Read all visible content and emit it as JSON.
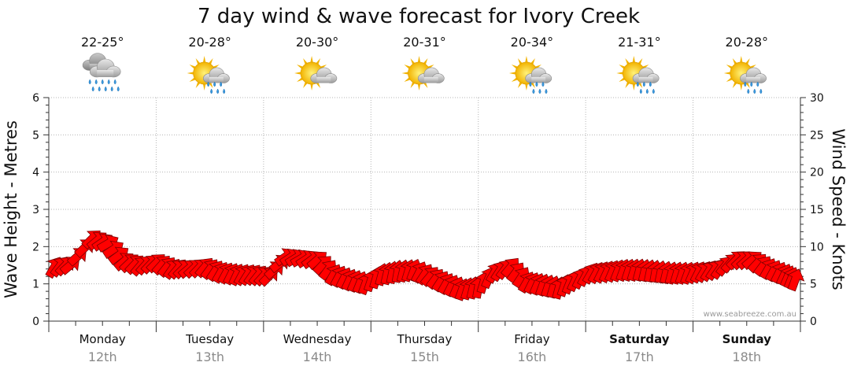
{
  "chart_data": {
    "type": "line",
    "title": "7 day wind & wave forecast for Ivory Creek",
    "ylabel": "Wave Height - Metres",
    "y2label": "Wind Speed - Knots",
    "ylim": [
      0,
      6
    ],
    "y2lim": [
      0,
      30
    ],
    "yticks": [
      "0",
      "1",
      "2",
      "3",
      "4",
      "5",
      "6"
    ],
    "y2ticks": [
      "0",
      "5",
      "10",
      "15",
      "20",
      "25",
      "30"
    ],
    "grid": true,
    "days": [
      {
        "name": "Monday",
        "date": "12th",
        "temp": "22-25°",
        "icon": "rain-cloud-icon",
        "bold": false
      },
      {
        "name": "Tuesday",
        "date": "13th",
        "temp": "20-28°",
        "icon": "sun-cloud-rain-icon",
        "bold": false
      },
      {
        "name": "Wednesday",
        "date": "14th",
        "temp": "20-30°",
        "icon": "sun-cloud-icon",
        "bold": false
      },
      {
        "name": "Thursday",
        "date": "15th",
        "temp": "20-31°",
        "icon": "sun-cloud-icon",
        "bold": false
      },
      {
        "name": "Friday",
        "date": "16th",
        "temp": "20-34°",
        "icon": "sun-cloud-rain-icon",
        "bold": false
      },
      {
        "name": "Saturday",
        "date": "17th",
        "temp": "21-31°",
        "icon": "sun-cloud-rain-icon",
        "bold": true
      },
      {
        "name": "Sunday",
        "date": "18th",
        "temp": "20-28°",
        "icon": "sun-cloud-rain-icon",
        "bold": true
      }
    ],
    "wind_series": {
      "name": "Wind",
      "unit": "knots",
      "color": "#ff0000",
      "x_days": [
        0.05,
        0.2,
        0.4,
        0.55,
        0.7,
        0.85,
        1.0,
        1.15,
        1.3,
        1.45,
        1.6,
        1.75,
        1.9,
        2.05,
        2.2,
        2.35,
        2.5,
        2.65,
        2.8,
        2.95,
        3.1,
        3.25,
        3.4,
        3.55,
        3.7,
        3.85,
        4.0,
        4.15,
        4.3,
        4.45,
        4.6,
        4.75,
        4.9,
        5.05,
        5.2,
        5.35,
        5.5,
        5.65,
        5.8,
        5.95,
        6.1,
        6.25,
        6.4,
        6.55,
        6.7,
        6.85,
        6.95
      ],
      "values": [
        7.2,
        7.5,
        11.0,
        10.4,
        8.0,
        7.4,
        7.8,
        7.0,
        7.0,
        7.2,
        6.5,
        6.2,
        6.2,
        6.0,
        8.6,
        8.4,
        8.2,
        6.2,
        5.5,
        5.0,
        6.2,
        6.6,
        6.8,
        6.0,
        5.0,
        4.2,
        4.5,
        6.5,
        7.2,
        5.2,
        4.8,
        4.4,
        5.4,
        6.4,
        6.6,
        6.8,
        6.8,
        6.6,
        6.4,
        6.4,
        6.6,
        7.0,
        8.2,
        8.2,
        7.0,
        6.2,
        5.5
      ],
      "direction_deg": [
        300,
        320,
        315,
        330,
        320,
        310,
        315,
        305,
        320,
        310,
        300,
        295,
        305,
        315,
        325,
        330,
        320,
        300,
        295,
        290,
        285,
        280,
        290,
        310,
        300,
        290,
        280,
        300,
        310,
        300,
        290,
        285,
        295,
        300,
        295,
        290,
        285,
        280,
        285,
        290,
        300,
        305,
        315,
        320,
        300,
        295,
        290
      ]
    },
    "watermark": "www.seabreeze.com.au"
  }
}
